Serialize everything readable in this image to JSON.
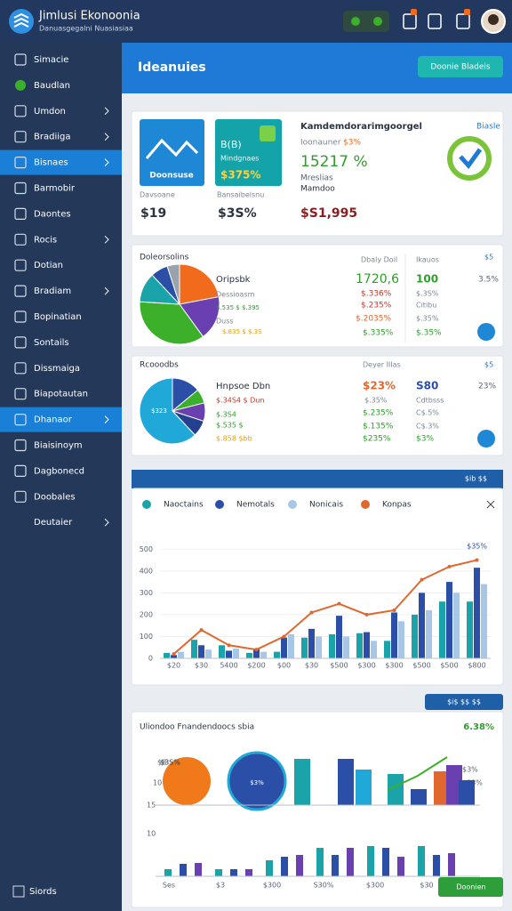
{
  "header": {
    "title": "Jimlusi Ekonoonia",
    "subtitle": "Danuasgegalni Nuasiasiaa"
  },
  "sidebar": {
    "items": [
      "Simacie",
      "Baudlan",
      "Umdon",
      "Bradiiga",
      "Bisnaes",
      "Barmobir",
      "Daontes",
      "Rocis",
      "Dotian",
      "Bradiam",
      "Bopinatian",
      "Sontails",
      "Dissmaiga",
      "Biapotautan",
      "Dhanaor",
      "Biaisinoym",
      "Dagbonecd",
      "Doobales",
      "Deutaier"
    ],
    "active": [
      4,
      14
    ],
    "chevron": [
      2,
      3,
      4,
      7,
      9,
      14,
      18
    ],
    "footer": "Siords"
  },
  "banner": {
    "title": "Ideanuies",
    "button": "Doonie Bladeis"
  },
  "summary_card": {
    "texts": [
      "Doonsuse",
      "B(B)",
      "Mindgnaes",
      "$375%",
      "Davsoane",
      "$19",
      "Bansaibelsnu",
      "$3S%",
      "Kamdemdorarimgoorgel",
      "Biasle",
      "Ioonauner",
      "$3%",
      "15217 %",
      "Mreslias",
      "Mamdoo",
      "$S1,995"
    ]
  },
  "pie_card_1": {
    "title": "Doleorsolins",
    "type": "pie",
    "values": [
      22,
      18,
      36,
      12,
      7,
      5
    ],
    "colors": [
      "#f26b1d",
      "#6a3fb0",
      "#3cb02a",
      "#1aa3a8",
      "#2b4fa6",
      "#9aa3ad"
    ],
    "texts": [
      "Dbaly Doil",
      "Ikauos",
      "$5",
      "Oripsbk",
      "Dessioasm",
      "$.535 $ $.395",
      "Duss",
      "$.835 $ $.3S",
      "1720,6",
      "$.336%",
      "$.235%",
      "$.2035%",
      "$.335%",
      "100",
      "$.3S%",
      "Citibu",
      "$.35%",
      "$.35%",
      "3.5%"
    ]
  },
  "pie_card_2": {
    "title": "Rcooodbs",
    "type": "pie",
    "values": [
      14,
      7,
      9,
      8,
      62
    ],
    "colors": [
      "#2b4fa6",
      "#3cb02a",
      "#6a3fb0",
      "#24408e",
      "#1fa8d8"
    ],
    "center_label": "$323",
    "texts": [
      "Deyer IIIas",
      "$5",
      "Hnpsoe Dbn",
      "$.34S4 $ Dun",
      "$.3S4",
      "$.535 $",
      "$.858 $bb",
      "$23%",
      "$.35%",
      "$.235%",
      "$.135%",
      "$235%",
      "S80",
      "Cdtbsss",
      "C$.5%",
      "C$.3%",
      "$3%",
      "23%"
    ]
  },
  "main_chart": {
    "type": "bar",
    "header": "$ib $$",
    "line_label": "$35%",
    "categories": [
      "$20",
      "$30",
      "5400",
      "$200",
      "$00",
      "$30",
      "$500",
      "$300",
      "$300",
      "$500",
      "$500",
      "$800"
    ],
    "series": [
      {
        "name": "Naoctains",
        "color": "#1aa3a8",
        "values": [
          25,
          85,
          60,
          25,
          30,
          95,
          110,
          115,
          80,
          200,
          260,
          260
        ]
      },
      {
        "name": "Nemotals",
        "color": "#2b4fa6",
        "values": [
          15,
          60,
          35,
          45,
          95,
          135,
          195,
          120,
          210,
          300,
          350,
          415
        ]
      },
      {
        "name": "Nonicais",
        "color": "#a8c6e6",
        "values": [
          30,
          40,
          45,
          30,
          110,
          100,
          100,
          80,
          170,
          220,
          300,
          340
        ]
      },
      {
        "name": "Konpas",
        "color": "#e0672e",
        "type": "line",
        "values": [
          20,
          130,
          60,
          40,
          100,
          210,
          250,
          200,
          220,
          360,
          420,
          450
        ]
      }
    ],
    "ylim": [
      0,
      550
    ],
    "yticks": [
      0,
      100,
      200,
      300,
      400,
      500
    ],
    "grid": true
  },
  "bottom_chart": {
    "type": "bar",
    "button": "$i$ $$ $$",
    "title": "Uliondoo Fnandendoocs sbia",
    "change": "6.38%",
    "circle_labels": [
      "$3S%",
      "$3%"
    ],
    "top_values": [
      52,
      52,
      40,
      35,
      18,
      38,
      45,
      28
    ],
    "top_colors": [
      "#1aa3a8",
      "#2b4fa6",
      "#1fa8d8",
      "#1aa3a8",
      "#2b4fa6",
      "#e0672e",
      "#6a3fb0",
      "#2b4fa6"
    ],
    "bottom_values": [
      8,
      14,
      15,
      8,
      8,
      8,
      18,
      22,
      24,
      32,
      24,
      32,
      34,
      32,
      22,
      34,
      24,
      26
    ],
    "bottom_colors": [
      "#1aa3a8",
      "#2b4fa6",
      "#6a3fb0"
    ],
    "categories": [
      "Ses",
      "$3",
      "$300",
      "S30%",
      "$300",
      "$30"
    ],
    "side_labels": [
      "$8",
      "10",
      "15",
      "10",
      "$3%",
      "$38%"
    ],
    "footer_button": "Doonien"
  }
}
